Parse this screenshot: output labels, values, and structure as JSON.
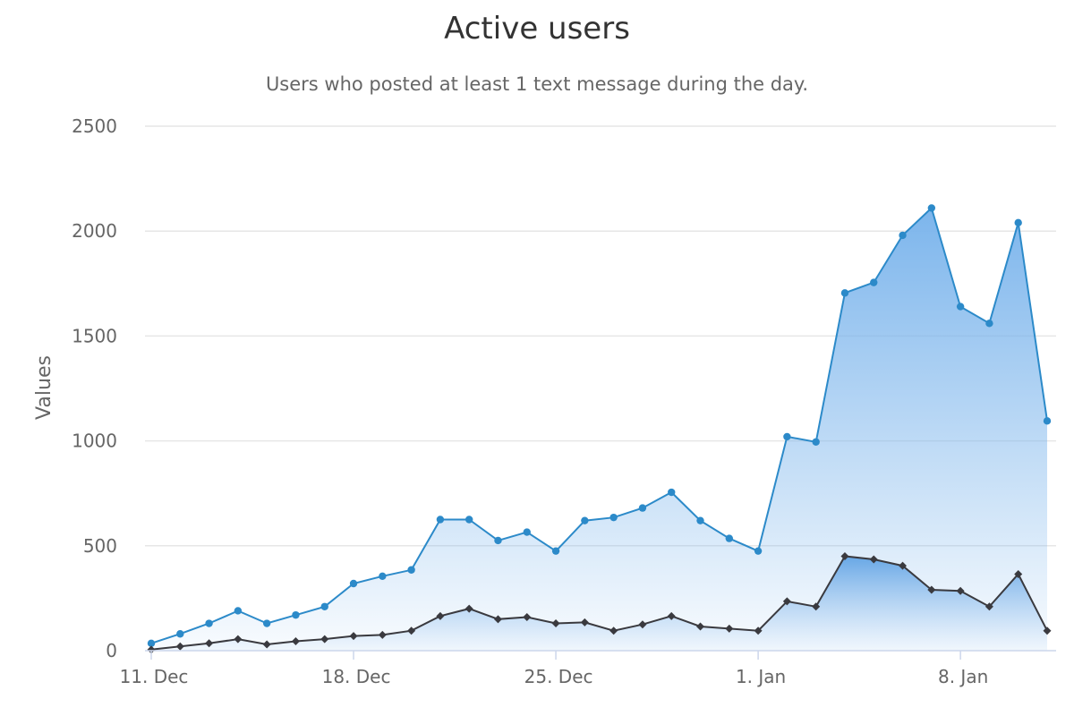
{
  "chart_data": {
    "type": "area",
    "title": "Active users",
    "subtitle": "Users who posted at least 1 text message during the day.",
    "xlabel": "",
    "ylabel": "Values",
    "ylim": [
      0,
      2500
    ],
    "yticks": [
      0,
      500,
      1000,
      1500,
      2000,
      2500
    ],
    "x": [
      "2023-12-11",
      "2023-12-12",
      "2023-12-13",
      "2023-12-14",
      "2023-12-15",
      "2023-12-16",
      "2023-12-17",
      "2023-12-18",
      "2023-12-19",
      "2023-12-20",
      "2023-12-21",
      "2023-12-22",
      "2023-12-23",
      "2023-12-24",
      "2023-12-25",
      "2023-12-26",
      "2023-12-27",
      "2023-12-28",
      "2023-12-29",
      "2023-12-30",
      "2023-12-31",
      "2024-01-01",
      "2024-01-02",
      "2024-01-03",
      "2024-01-04",
      "2024-01-05",
      "2024-01-06",
      "2024-01-07",
      "2024-01-08",
      "2024-01-09",
      "2024-01-10",
      "2024-01-11"
    ],
    "xticks": [
      {
        "label": "11. Dec",
        "date": "2023-12-11"
      },
      {
        "label": "18. Dec",
        "date": "2023-12-18"
      },
      {
        "label": "25. Dec",
        "date": "2023-12-25"
      },
      {
        "label": "1. Jan",
        "date": "2024-01-01"
      },
      {
        "label": "8. Jan",
        "date": "2024-01-08"
      }
    ],
    "grid": true,
    "colors": {
      "series1": "#2c8ac9",
      "series1_fill": "#7cb5ec",
      "series2": "#3a3a3f"
    },
    "series": [
      {
        "marker": "circle",
        "values": [
          35,
          80,
          130,
          190,
          130,
          170,
          210,
          320,
          355,
          385,
          625,
          625,
          525,
          565,
          475,
          620,
          635,
          680,
          755,
          620,
          535,
          475,
          1020,
          995,
          1705,
          1755,
          1980,
          2110,
          1640,
          1560,
          2040,
          1095
        ]
      },
      {
        "marker": "diamond",
        "values": [
          5,
          20,
          35,
          55,
          30,
          45,
          55,
          70,
          75,
          95,
          165,
          200,
          150,
          160,
          130,
          135,
          95,
          125,
          165,
          115,
          105,
          95,
          235,
          210,
          450,
          435,
          405,
          290,
          285,
          210,
          365,
          95
        ]
      }
    ]
  }
}
